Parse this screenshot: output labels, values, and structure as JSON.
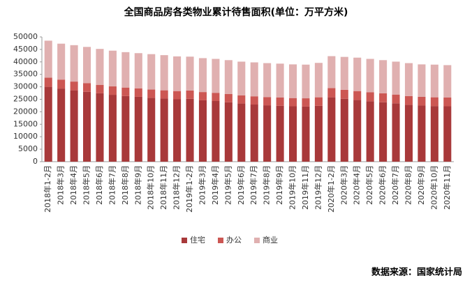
{
  "chart_data": {
    "type": "stacked_bar",
    "title": "全国商品房各类物业累计待售面积(单位：万平方米)",
    "source": "数据来源：国家统计局",
    "categories": [
      "2018年1-2月",
      "2018年3月",
      "2018年4月",
      "2018年5月",
      "2018年6月",
      "2018年7月",
      "2018年8月",
      "2018年9月",
      "2018年10月",
      "2018年11月",
      "2018年12月",
      "2019年1-2月",
      "2019年3月",
      "2019年4月",
      "2019年5月",
      "2019年6月",
      "2019年7月",
      "2019年8月",
      "2019年9月",
      "2019年10月",
      "2019年11月",
      "2019年12月",
      "2020年1-2月",
      "2020年3月",
      "2020年4月",
      "2020年5月",
      "2020年6月",
      "2020年7月",
      "2020年8月",
      "2020年9月",
      "2020年10月",
      "2020年11月"
    ],
    "series": [
      {
        "name": "住宅",
        "color": "#a8393a",
        "values": [
          30000,
          29300,
          28600,
          28000,
          27400,
          26800,
          26300,
          26000,
          25600,
          25300,
          25000,
          25200,
          24600,
          24300,
          23800,
          23300,
          22900,
          22600,
          22400,
          22200,
          22100,
          22400,
          25800,
          25200,
          24700,
          24200,
          23800,
          23400,
          22800,
          22500,
          22300,
          22200
        ]
      },
      {
        "name": "办公",
        "color": "#cc5753",
        "values": [
          3700,
          3600,
          3500,
          3500,
          3400,
          3400,
          3400,
          3400,
          3300,
          3300,
          3300,
          3300,
          3300,
          3300,
          3300,
          3300,
          3300,
          3300,
          3300,
          3300,
          3300,
          3400,
          3700,
          3600,
          3600,
          3600,
          3600,
          3500,
          3500,
          3500,
          3500,
          3500
        ]
      },
      {
        "name": "商业",
        "color": "#e0b0b0",
        "values": [
          14800,
          14400,
          14600,
          14500,
          14400,
          14300,
          14200,
          14100,
          14200,
          14100,
          13900,
          13600,
          13600,
          13600,
          13600,
          13500,
          13600,
          13600,
          13600,
          13500,
          13500,
          13800,
          12800,
          13200,
          13400,
          13400,
          13300,
          13200,
          13200,
          13000,
          13100,
          13000
        ]
      }
    ],
    "ylim": [
      0,
      50000
    ],
    "yticks": [
      0,
      5000,
      10000,
      15000,
      20000,
      25000,
      30000,
      35000,
      40000,
      45000,
      50000
    ],
    "legend": "bottom"
  }
}
